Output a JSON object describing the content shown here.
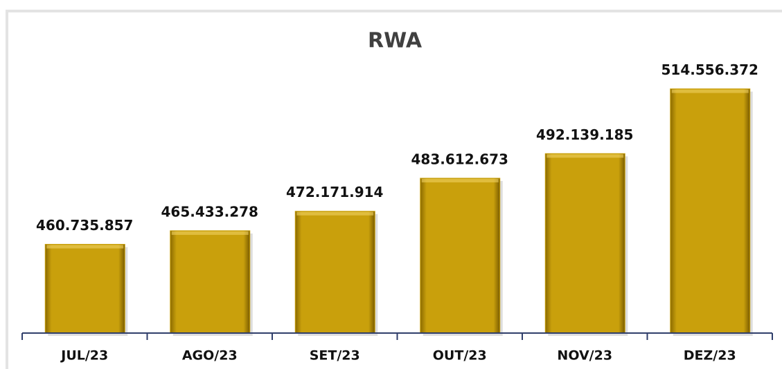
{
  "chart_data": {
    "type": "bar",
    "title": "RWA",
    "categories": [
      "JUL/23",
      "AGO/23",
      "SET/23",
      "OUT/23",
      "NOV/23",
      "DEZ/23"
    ],
    "values": [
      460735857,
      465433278,
      472171914,
      483612673,
      492139185,
      514556372
    ],
    "value_labels": [
      "460.735.857",
      "465.433.278",
      "472.171.914",
      "483.612.673",
      "492.139.185",
      "514.556.372"
    ],
    "color": "#c9a00c",
    "ylim": [
      430000000,
      530000000
    ]
  }
}
